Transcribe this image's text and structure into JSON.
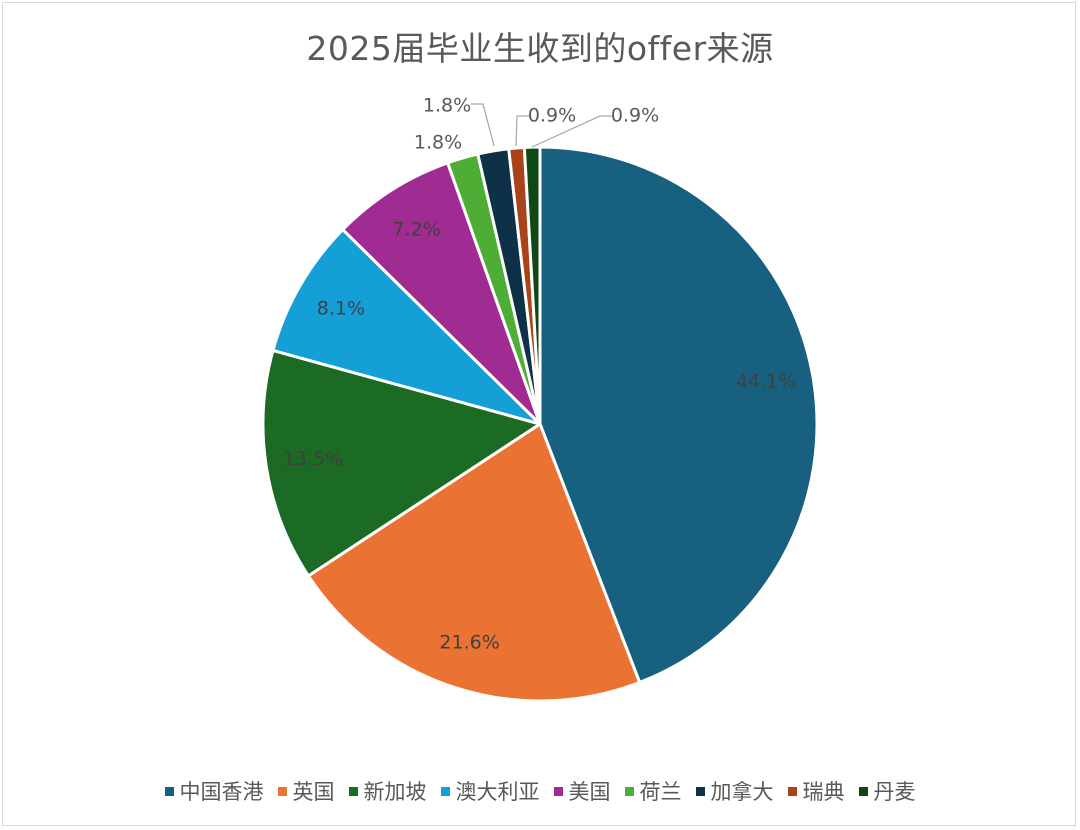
{
  "chart_data": {
    "type": "pie",
    "title": "2025届毕业生收到的offer来源",
    "legend_position": "bottom",
    "slices": [
      {
        "label": "中国香港",
        "value": 44.1,
        "display": "44.1%",
        "color": "#17607f"
      },
      {
        "label": "英国",
        "value": 21.6,
        "display": "21.6%",
        "color": "#ea7333"
      },
      {
        "label": "新加坡",
        "value": 13.5,
        "display": "13.5%",
        "color": "#1b6b24"
      },
      {
        "label": "澳大利亚",
        "value": 8.1,
        "display": "8.1%",
        "color": "#14a0d7"
      },
      {
        "label": "美国",
        "value": 7.2,
        "display": "7.2%",
        "color": "#a02b93"
      },
      {
        "label": "荷兰",
        "value": 1.8,
        "display": "1.8%",
        "color": "#4ead34"
      },
      {
        "label": "加拿大",
        "value": 1.8,
        "display": "1.8%",
        "color": "#0e3148"
      },
      {
        "label": "瑞典",
        "value": 0.9,
        "display": "0.9%",
        "color": "#a8431a"
      },
      {
        "label": "丹麦",
        "value": 0.9,
        "display": "0.9%",
        "color": "#104716"
      }
    ]
  }
}
